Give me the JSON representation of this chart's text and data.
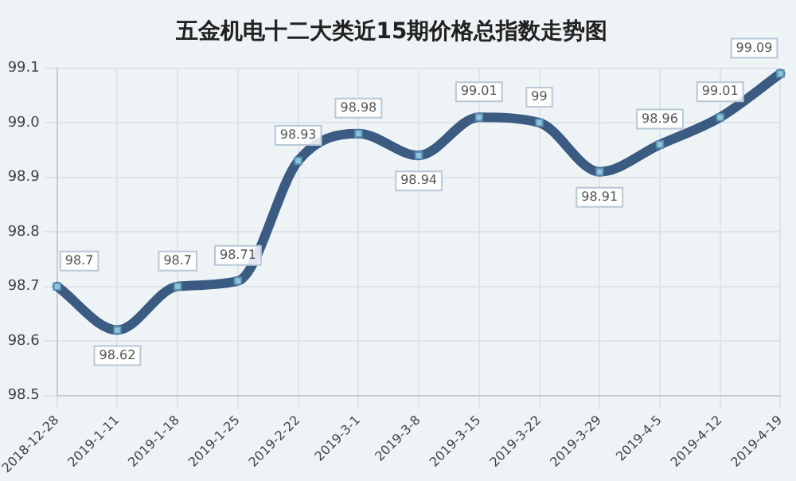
{
  "chart_data": {
    "type": "line",
    "title": "五金机电十二大类近15期价格总指数走势图",
    "categories": [
      "2018-12-28",
      "2019-1-11",
      "2019-1-18",
      "2019-1-25",
      "2019-2-22",
      "2019-3-1",
      "2019-3-8",
      "2019-3-15",
      "2019-3-22",
      "2019-3-29",
      "2019-4-5",
      "2019-4-12",
      "2019-4-19"
    ],
    "series": [
      {
        "color": "#3b5b82",
        "values": [
          98.7,
          98.62,
          98.7,
          98.71,
          98.93,
          98.98,
          98.94,
          99.01,
          99,
          98.91,
          98.96,
          99.01,
          99.09
        ]
      }
    ],
    "ylim": [
      98.5,
      99.1
    ],
    "yticks": [
      98.5,
      98.6,
      98.7,
      98.8,
      98.9,
      {
        "value": 99,
        "label": "99.0"
      },
      99.1
    ],
    "grid": true,
    "legend": false,
    "marker": "square",
    "data_labels": true
  }
}
